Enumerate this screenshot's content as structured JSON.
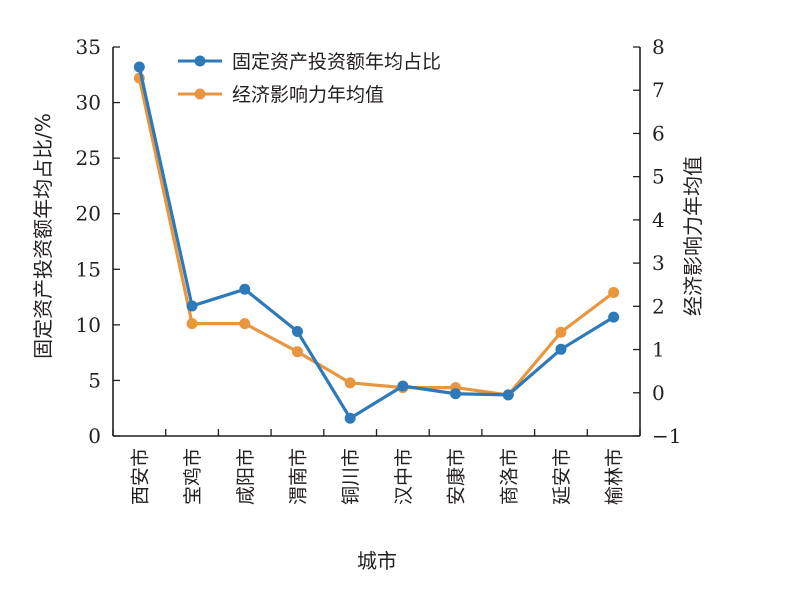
{
  "chart_data": {
    "type": "line",
    "xlabel": "城市",
    "ylabel": "固定资产投资额年均占比/%",
    "y2label": "经济影响力年均值",
    "categories": [
      "西安市",
      "宝鸡市",
      "咸阳市",
      "渭南市",
      "铜川市",
      "汉中市",
      "安康市",
      "商洛市",
      "延安市",
      "榆林市"
    ],
    "ylim": [
      0,
      35
    ],
    "yticks": [
      0,
      5,
      10,
      15,
      20,
      25,
      30,
      35
    ],
    "y2lim": [
      -1,
      8
    ],
    "y2ticks": [
      -1,
      0,
      1,
      2,
      3,
      4,
      5,
      6,
      7,
      8
    ],
    "grid": false,
    "legend_position": "top",
    "series": [
      {
        "name": "固定资产投资额年均占比",
        "axis": "left",
        "color": "#2e7ab8",
        "values": [
          33.2,
          11.7,
          13.2,
          9.4,
          1.6,
          4.5,
          3.8,
          3.7,
          7.8,
          10.7
        ]
      },
      {
        "name": "经济影响力年均值",
        "axis": "right",
        "color": "#e8963f",
        "values": [
          7.28,
          1.6,
          1.6,
          0.95,
          0.23,
          0.12,
          0.12,
          -0.05,
          1.4,
          2.32
        ]
      }
    ]
  }
}
